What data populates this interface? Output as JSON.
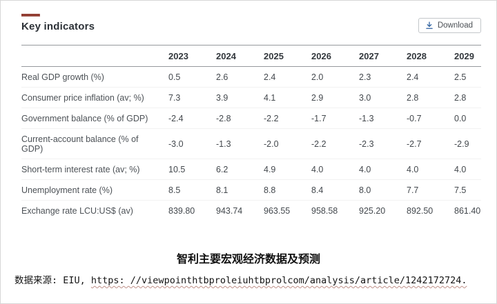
{
  "header": {
    "title": "Key indicators",
    "download_label": "Download",
    "accent_color": "#a9503c",
    "icon_color": "#2c5f9e"
  },
  "table": {
    "years": [
      "2023",
      "2024",
      "2025",
      "2026",
      "2027",
      "2028",
      "2029"
    ],
    "rows": [
      {
        "label": "Real GDP growth (%)",
        "values": [
          "0.5",
          "2.6",
          "2.4",
          "2.0",
          "2.3",
          "2.4",
          "2.5"
        ]
      },
      {
        "label": "Consumer price inflation (av; %)",
        "values": [
          "7.3",
          "3.9",
          "4.1",
          "2.9",
          "3.0",
          "2.8",
          "2.8"
        ]
      },
      {
        "label": "Government balance (% of GDP)",
        "values": [
          "-2.4",
          "-2.8",
          "-2.2",
          "-1.7",
          "-1.3",
          "-0.7",
          "0.0"
        ]
      },
      {
        "label": "Current-account balance (% of GDP)",
        "values": [
          "-3.0",
          "-1.3",
          "-2.0",
          "-2.2",
          "-2.3",
          "-2.7",
          "-2.9"
        ]
      },
      {
        "label": "Short-term interest rate (av; %)",
        "values": [
          "10.5",
          "6.2",
          "4.9",
          "4.0",
          "4.0",
          "4.0",
          "4.0"
        ]
      },
      {
        "label": "Unemployment rate (%)",
        "values": [
          "8.5",
          "8.1",
          "8.8",
          "8.4",
          "8.0",
          "7.7",
          "7.5"
        ]
      },
      {
        "label": "Exchange rate LCU:US$ (av)",
        "values": [
          "839.80",
          "943.74",
          "963.55",
          "958.58",
          "925.20",
          "892.50",
          "861.40"
        ]
      }
    ]
  },
  "footer": {
    "caption": "智利主要宏观经济数据及预测",
    "source_prefix": "数据来源: EIU, ",
    "source_url": "https: //viewpointhtbproleiuhtbprolcom/analysis/article/1242172724."
  }
}
